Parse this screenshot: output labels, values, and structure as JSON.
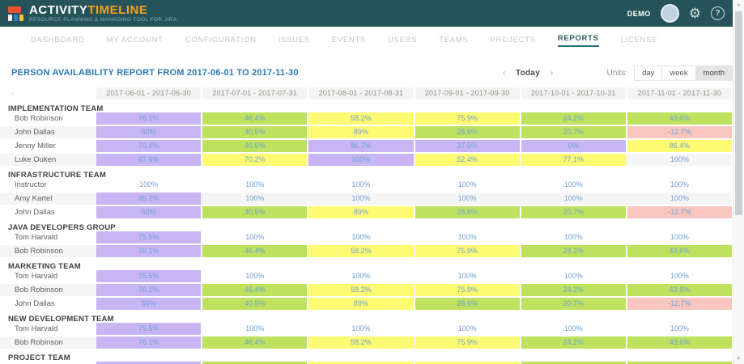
{
  "header": {
    "logo_title_1": "ACTIVITY",
    "logo_title_2": "TIMELINE",
    "logo_subtitle": "RESOURCE PLANNING & MANAGING TOOL FOR JIRA",
    "user_label": "DEMO"
  },
  "nav": {
    "items": [
      {
        "label": "DASHBOARD",
        "active": false
      },
      {
        "label": "MY ACCOUNT",
        "active": false
      },
      {
        "label": "CONFIGURATION",
        "active": false
      },
      {
        "label": "ISSUES",
        "active": false
      },
      {
        "label": "EVENTS",
        "active": false
      },
      {
        "label": "USERS",
        "active": false
      },
      {
        "label": "TEAMS",
        "active": false
      },
      {
        "label": "PROJECTS",
        "active": false
      },
      {
        "label": "REPORTS",
        "active": true
      },
      {
        "label": "LICENSE",
        "active": false
      }
    ]
  },
  "report": {
    "title": "PERSON AVAILABILITY REPORT FROM 2017-06-01 TO 2017-11-30",
    "prev_glyph": "‹",
    "next_glyph": "›",
    "today_label": "Today",
    "units_label": "Units:",
    "units": [
      "day",
      "week",
      "month"
    ],
    "selected_unit": "month"
  },
  "colors": {
    "purple": "#c7b6f3",
    "green": "#bee15e",
    "yellow": "#fcfb72",
    "pink": "#f8c6bf",
    "none": ""
  },
  "table": {
    "corner_dash": "-",
    "columns": [
      "2017-06-01 - 2017-06-30",
      "2017-07-01 - 2017-07-31",
      "2017-08-01 - 2017-08-31",
      "2017-09-01 - 2017-09-30",
      "2017-10-01 - 2017-10-31",
      "2017-11-01 - 2017-11-30"
    ],
    "groups": [
      {
        "name": "IMPLEMENTATION TEAM",
        "rows": [
          {
            "name": "Bob Robinson",
            "cells": [
              {
                "v": "76.1%",
                "c": "purple"
              },
              {
                "v": "46.4%",
                "c": "green"
              },
              {
                "v": "58.2%",
                "c": "yellow"
              },
              {
                "v": "75.9%",
                "c": "yellow"
              },
              {
                "v": "24.2%",
                "c": "green"
              },
              {
                "v": "43.6%",
                "c": "green"
              }
            ]
          },
          {
            "name": "John Dallas",
            "cells": [
              {
                "v": "50%",
                "c": "purple"
              },
              {
                "v": "40.5%",
                "c": "green"
              },
              {
                "v": "89%",
                "c": "yellow"
              },
              {
                "v": "28.6%",
                "c": "green"
              },
              {
                "v": "20.7%",
                "c": "green"
              },
              {
                "v": "-12.7%",
                "c": "pink"
              }
            ]
          },
          {
            "name": "Jenny Miller",
            "cells": [
              {
                "v": "79.4%",
                "c": "purple"
              },
              {
                "v": "40.5%",
                "c": "green"
              },
              {
                "v": "86.7%",
                "c": "purple"
              },
              {
                "v": "37.5%",
                "c": "purple"
              },
              {
                "v": "0%",
                "c": "purple"
              },
              {
                "v": "86.4%",
                "c": "yellow"
              }
            ]
          },
          {
            "name": "Luke Ouken",
            "cells": [
              {
                "v": "87.8%",
                "c": "purple"
              },
              {
                "v": "70.2%",
                "c": "yellow"
              },
              {
                "v": "100%",
                "c": "purple"
              },
              {
                "v": "52.4%",
                "c": "yellow"
              },
              {
                "v": "77.1%",
                "c": "yellow"
              },
              {
                "v": "100%",
                "c": "none"
              }
            ]
          }
        ]
      },
      {
        "name": "INFRASTRUCTURE TEAM",
        "rows": [
          {
            "name": "Instructor",
            "cells": [
              {
                "v": "100%",
                "c": "none"
              },
              {
                "v": "100%",
                "c": "none"
              },
              {
                "v": "100%",
                "c": "none"
              },
              {
                "v": "100%",
                "c": "none"
              },
              {
                "v": "100%",
                "c": "none"
              },
              {
                "v": "100%",
                "c": "none"
              }
            ]
          },
          {
            "name": "Amy Kartel",
            "cells": [
              {
                "v": "95.2%",
                "c": "purple"
              },
              {
                "v": "100%",
                "c": "none"
              },
              {
                "v": "100%",
                "c": "none"
              },
              {
                "v": "100%",
                "c": "none"
              },
              {
                "v": "100%",
                "c": "none"
              },
              {
                "v": "100%",
                "c": "none"
              }
            ]
          },
          {
            "name": "John Dallas",
            "cells": [
              {
                "v": "50%",
                "c": "purple"
              },
              {
                "v": "40.5%",
                "c": "green"
              },
              {
                "v": "89%",
                "c": "yellow"
              },
              {
                "v": "28.6%",
                "c": "green"
              },
              {
                "v": "20.7%",
                "c": "green"
              },
              {
                "v": "-12.7%",
                "c": "pink"
              }
            ]
          }
        ]
      },
      {
        "name": "JAVA DEVELOPERS GROUP",
        "rows": [
          {
            "name": "Tom Harvald",
            "cells": [
              {
                "v": "75.5%",
                "c": "purple"
              },
              {
                "v": "100%",
                "c": "none"
              },
              {
                "v": "100%",
                "c": "none"
              },
              {
                "v": "100%",
                "c": "none"
              },
              {
                "v": "100%",
                "c": "none"
              },
              {
                "v": "100%",
                "c": "none"
              }
            ]
          },
          {
            "name": "Bob Robinson",
            "cells": [
              {
                "v": "76.1%",
                "c": "purple"
              },
              {
                "v": "46.4%",
                "c": "green"
              },
              {
                "v": "58.2%",
                "c": "yellow"
              },
              {
                "v": "75.9%",
                "c": "yellow"
              },
              {
                "v": "24.2%",
                "c": "green"
              },
              {
                "v": "43.6%",
                "c": "green"
              }
            ]
          }
        ]
      },
      {
        "name": "MARKETING TEAM",
        "rows": [
          {
            "name": "Tom Harvald",
            "cells": [
              {
                "v": "75.5%",
                "c": "purple"
              },
              {
                "v": "100%",
                "c": "none"
              },
              {
                "v": "100%",
                "c": "none"
              },
              {
                "v": "100%",
                "c": "none"
              },
              {
                "v": "100%",
                "c": "none"
              },
              {
                "v": "100%",
                "c": "none"
              }
            ]
          },
          {
            "name": "Bob Robinson",
            "cells": [
              {
                "v": "76.1%",
                "c": "purple"
              },
              {
                "v": "46.4%",
                "c": "green"
              },
              {
                "v": "58.2%",
                "c": "yellow"
              },
              {
                "v": "75.9%",
                "c": "yellow"
              },
              {
                "v": "24.2%",
                "c": "green"
              },
              {
                "v": "43.6%",
                "c": "green"
              }
            ]
          },
          {
            "name": "John Dallas",
            "cells": [
              {
                "v": "50%",
                "c": "purple"
              },
              {
                "v": "40.5%",
                "c": "green"
              },
              {
                "v": "89%",
                "c": "yellow"
              },
              {
                "v": "28.6%",
                "c": "green"
              },
              {
                "v": "20.7%",
                "c": "green"
              },
              {
                "v": "-12.7%",
                "c": "pink"
              }
            ]
          }
        ]
      },
      {
        "name": "NEW DEVELOPMENT TEAM",
        "rows": [
          {
            "name": "Tom Harvald",
            "cells": [
              {
                "v": "75.5%",
                "c": "purple"
              },
              {
                "v": "100%",
                "c": "none"
              },
              {
                "v": "100%",
                "c": "none"
              },
              {
                "v": "100%",
                "c": "none"
              },
              {
                "v": "100%",
                "c": "none"
              },
              {
                "v": "100%",
                "c": "none"
              }
            ]
          },
          {
            "name": "Bob Robinson",
            "cells": [
              {
                "v": "76.1%",
                "c": "purple"
              },
              {
                "v": "46.4%",
                "c": "green"
              },
              {
                "v": "58.2%",
                "c": "yellow"
              },
              {
                "v": "75.9%",
                "c": "yellow"
              },
              {
                "v": "24.2%",
                "c": "green"
              },
              {
                "v": "43.6%",
                "c": "green"
              }
            ]
          }
        ]
      },
      {
        "name": "PROJECT TEAM",
        "rows": [
          {
            "name": "",
            "cells": [
              {
                "v": "",
                "c": "purple"
              },
              {
                "v": "",
                "c": "green"
              },
              {
                "v": "",
                "c": "yellow"
              },
              {
                "v": "",
                "c": "yellow"
              },
              {
                "v": "",
                "c": "green"
              },
              {
                "v": "",
                "c": "green"
              }
            ]
          }
        ]
      }
    ]
  }
}
